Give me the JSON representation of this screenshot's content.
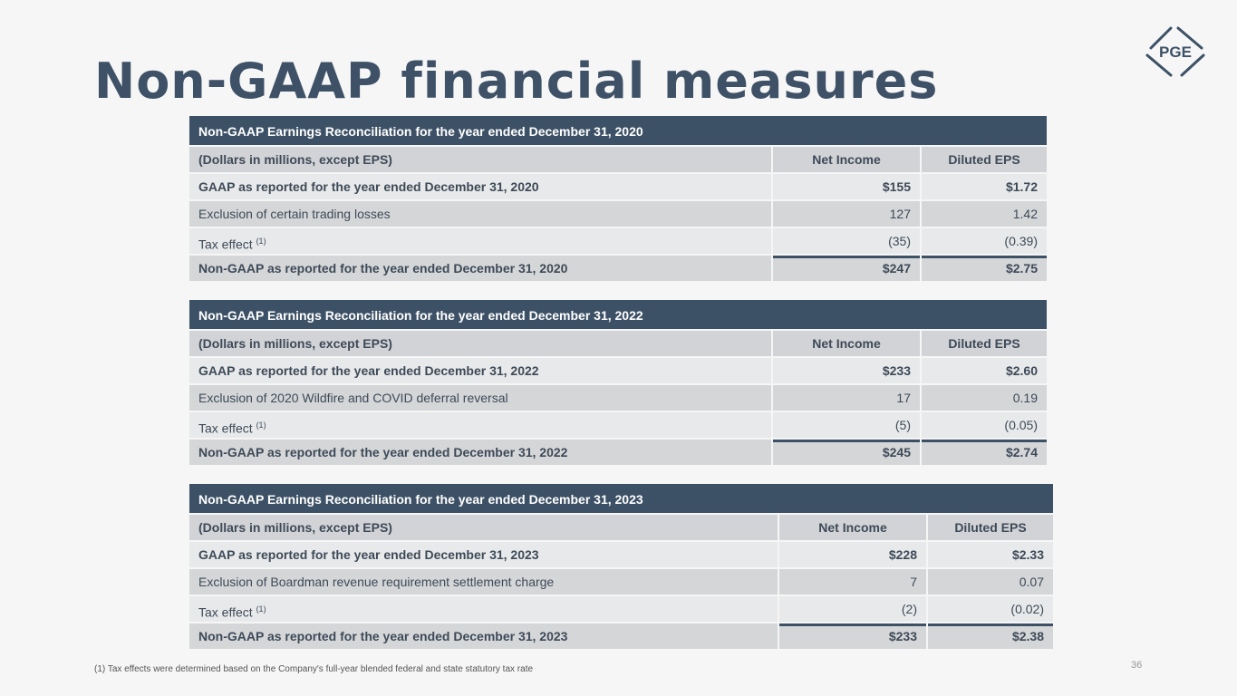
{
  "title": "Non-GAAP financial measures",
  "logo": "PGE",
  "tables": [
    {
      "header": "Non-GAAP Earnings Reconciliation for the year ended December 31, 2020",
      "columns": [
        "(Dollars in millions, except EPS)",
        "Net Income",
        "Diluted EPS"
      ],
      "rows": [
        [
          "GAAP as reported for the year ended December 31, 2020",
          "$155",
          "$1.72"
        ],
        [
          "Exclusion of certain trading losses",
          "127",
          "1.42"
        ],
        [
          "Tax effect",
          "(35)",
          "(0.39)"
        ],
        [
          "Non-GAAP as reported for the year ended December 31, 2020",
          "$247",
          "$2.75"
        ]
      ]
    },
    {
      "header": "Non-GAAP Earnings Reconciliation for the year ended December 31, 2022",
      "columns": [
        "(Dollars in millions, except EPS)",
        "Net Income",
        "Diluted EPS"
      ],
      "rows": [
        [
          "GAAP as reported for the year ended December 31, 2022",
          "$233",
          "$2.60"
        ],
        [
          "Exclusion of 2020 Wildfire and COVID deferral reversal",
          "17",
          "0.19"
        ],
        [
          "Tax effect",
          "(5)",
          "(0.05)"
        ],
        [
          "Non-GAAP as reported for the year ended December 31, 2022",
          "$245",
          "$2.74"
        ]
      ]
    },
    {
      "header": "Non-GAAP Earnings Reconciliation for the year ended December 31, 2023",
      "columns": [
        "(Dollars in millions, except EPS)",
        "Net Income",
        "Diluted EPS"
      ],
      "rows": [
        [
          "GAAP as reported for the year ended December 31, 2023",
          "$228",
          "$2.33"
        ],
        [
          "Exclusion of Boardman revenue requirement settlement charge",
          "7",
          "0.07"
        ],
        [
          "Tax effect",
          "(2)",
          "(0.02)"
        ],
        [
          "Non-GAAP as reported for the year ended December 31, 2023",
          "$233",
          "$2.38"
        ]
      ]
    }
  ],
  "footnote_marker": "(1)",
  "footnote": "(1)    Tax effects were determined based on the Company's full-year blended federal and state statutory tax rate",
  "page_number": "36"
}
